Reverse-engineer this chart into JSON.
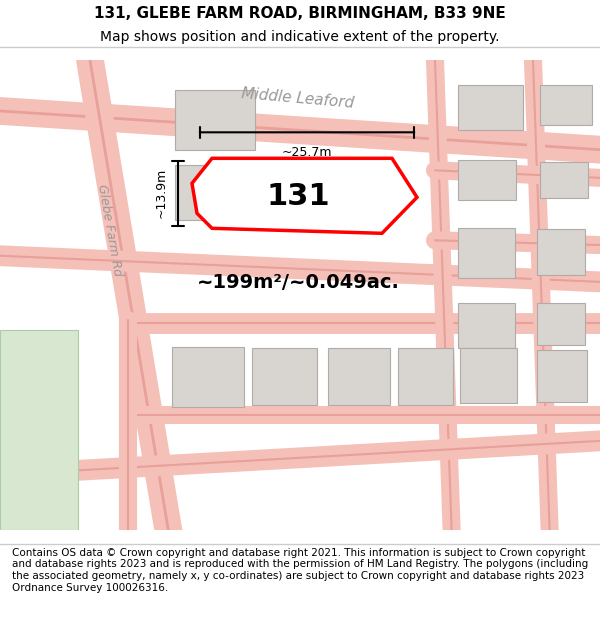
{
  "title_line1": "131, GLEBE FARM ROAD, BIRMINGHAM, B33 9NE",
  "title_line2": "Map shows position and indicative extent of the property.",
  "footer_text": "Contains OS data © Crown copyright and database right 2021. This information is subject to Crown copyright and database rights 2023 and is reproduced with the permission of HM Land Registry. The polygons (including the associated geometry, namely x, y co-ordinates) are subject to Crown copyright and database rights 2023 Ordnance Survey 100026316.",
  "bg_color": "#ffffff",
  "map_bg": "#f8f4f0",
  "road_color_light": "#f5c0b8",
  "road_color_medium": "#e8a09a",
  "building_color": "#d8d4d0",
  "building_edge": "#b0aba8",
  "green_area": "#d8e8d0",
  "highlight_color": "#ff0000",
  "highlight_fill": "#ffffff",
  "area_text": "~199m²/~0.049ac.",
  "number_text": "131",
  "road_label": "Glebe Farm Rd",
  "street_label": "Middle Leaford",
  "dim_width": "~25.7m",
  "dim_height": "~13.9m",
  "title_fontsize": 11,
  "subtitle_fontsize": 10,
  "footer_fontsize": 7.5
}
